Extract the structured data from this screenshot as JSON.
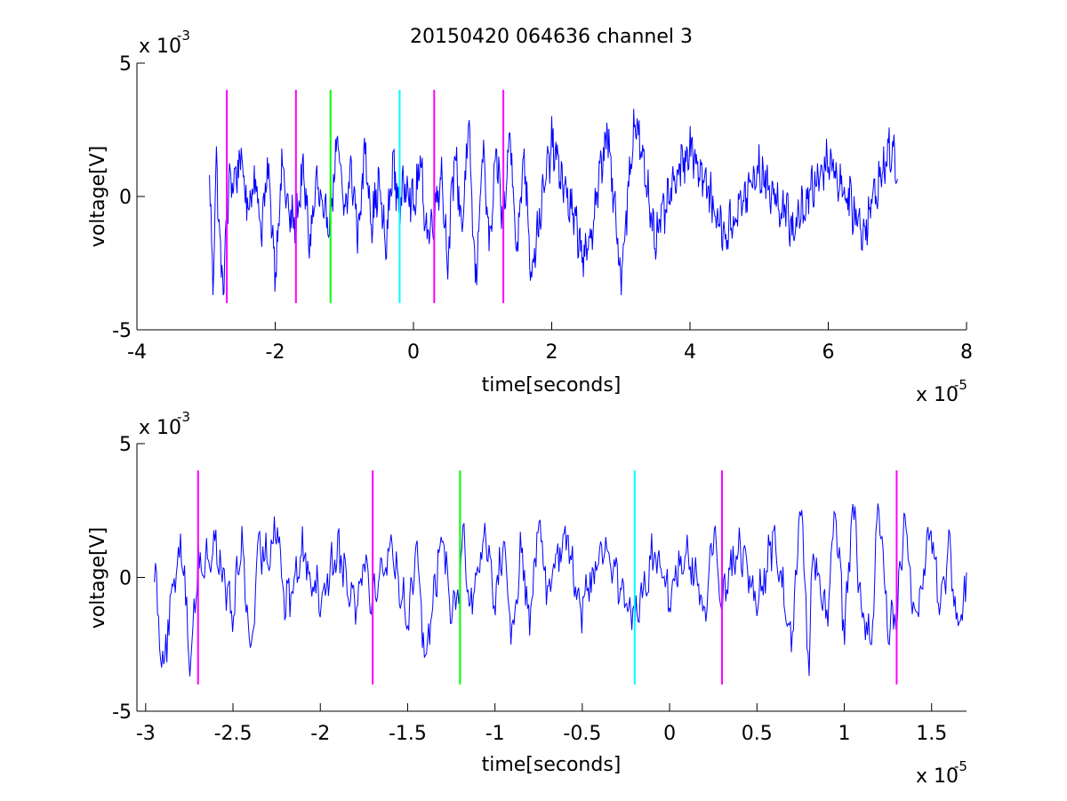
{
  "figure_title": "20150420 064636 channel 3",
  "chart_data": [
    {
      "type": "line",
      "xlabel": "time[seconds]",
      "ylabel": "voltage[V]",
      "x_multiplier": "x 10",
      "x_exponent": "-5",
      "y_multiplier": "x 10",
      "y_exponent": "-3",
      "xlim": [
        -4,
        8
      ],
      "ylim": [
        -5,
        5
      ],
      "xticks": [
        -4,
        -2,
        0,
        2,
        4,
        6,
        8
      ],
      "xtick_labels": [
        "-4",
        "-2",
        "0",
        "2",
        "4",
        "6",
        "8"
      ],
      "yticks": [
        -5,
        0,
        5
      ],
      "ytick_labels": [
        "-5",
        "0",
        "5"
      ],
      "series_color": "#0000ff",
      "x_range": [
        -2.95,
        7.0
      ],
      "markers": [
        {
          "x": -2.7,
          "color": "#ff00ff",
          "ymin": -4,
          "ymax": 4
        },
        {
          "x": -1.7,
          "color": "#ff00ff",
          "ymin": -4,
          "ymax": 4
        },
        {
          "x": -1.2,
          "color": "#00ff00",
          "ymin": -4,
          "ymax": 4
        },
        {
          "x": -0.2,
          "color": "#00ffff",
          "ymin": -4,
          "ymax": 4
        },
        {
          "x": 0.3,
          "color": "#ff00ff",
          "ymin": -4,
          "ymax": 4
        },
        {
          "x": 1.3,
          "color": "#ff00ff",
          "ymin": -4,
          "ymax": 4
        }
      ],
      "series": [
        {
          "x": [
            -2.95,
            -2.9,
            -2.85,
            -2.8,
            -2.75,
            -2.7,
            -2.65,
            -2.6,
            -2.5,
            -2.4,
            -2.3,
            -2.2,
            -2.1,
            -2.0,
            -1.9,
            -1.8,
            -1.7,
            -1.6,
            -1.5,
            -1.4,
            -1.3,
            -1.2,
            -1.1,
            -1.0,
            -0.9,
            -0.8,
            -0.7,
            -0.6,
            -0.5,
            -0.4,
            -0.3,
            -0.2,
            -0.1,
            0.0,
            0.1,
            0.2,
            0.3,
            0.4,
            0.5,
            0.6,
            0.7,
            0.8,
            0.9,
            1.0,
            1.1,
            1.2,
            1.3,
            1.4,
            1.5,
            1.6,
            1.7,
            2.0,
            2.5,
            2.8,
            3.0,
            3.2,
            3.5,
            4.0,
            4.5,
            5.0,
            5.5,
            6.0,
            6.5,
            6.9,
            7.0
          ],
          "y": [
            0.5,
            -3.2,
            1.5,
            -2.0,
            -3.5,
            -1.0,
            0.8,
            0.5,
            1.5,
            -0.5,
            0.8,
            -1.2,
            1.0,
            -2.8,
            1.2,
            -0.8,
            -1.0,
            1.0,
            -1.8,
            0.6,
            -1.0,
            -0.5,
            2.0,
            -0.7,
            1.0,
            -1.4,
            1.8,
            -0.9,
            0.5,
            -2.0,
            1.3,
            -0.5,
            0.8,
            -0.5,
            1.2,
            -1.5,
            -0.7,
            1.0,
            -2.5,
            1.8,
            -1.2,
            2.5,
            -3.5,
            2.0,
            -2.0,
            1.5,
            -1.0,
            2.5,
            -2.2,
            1.8,
            -2.8,
            2.0,
            -2.5,
            2.5,
            -3.0,
            3.0,
            -1.5,
            2.0,
            -1.5,
            1.0,
            -1.2,
            1.5,
            -1.3,
            1.8,
            1.0
          ]
        }
      ]
    },
    {
      "type": "line",
      "xlabel": "time[seconds]",
      "ylabel": "voltage[V]",
      "x_multiplier": "x 10",
      "x_exponent": "-5",
      "y_multiplier": "x 10",
      "y_exponent": "-3",
      "xlim": [
        -3.05,
        1.7
      ],
      "ylim": [
        -5,
        5
      ],
      "xticks": [
        -3,
        -2.5,
        -2,
        -1.5,
        -1,
        -0.5,
        0,
        0.5,
        1,
        1.5
      ],
      "xtick_labels": [
        "-3",
        "-2.5",
        "-2",
        "-1.5",
        "-1",
        "-0.5",
        "0",
        "0.5",
        "1",
        "1.5"
      ],
      "yticks": [
        -5,
        0,
        5
      ],
      "ytick_labels": [
        "-5",
        "0",
        "5"
      ],
      "series_color": "#0000ff",
      "x_range": [
        -2.95,
        1.7
      ],
      "markers": [
        {
          "x": -2.7,
          "color": "#ff00ff",
          "ymin": -4,
          "ymax": 4
        },
        {
          "x": -1.7,
          "color": "#ff00ff",
          "ymin": -4,
          "ymax": 4
        },
        {
          "x": -1.2,
          "color": "#00ff00",
          "ymin": -4,
          "ymax": 4
        },
        {
          "x": -0.2,
          "color": "#00ffff",
          "ymin": -4,
          "ymax": 4
        },
        {
          "x": 0.3,
          "color": "#ff00ff",
          "ymin": -4,
          "ymax": 4
        },
        {
          "x": 1.3,
          "color": "#ff00ff",
          "ymin": -4,
          "ymax": 4
        }
      ],
      "series": [
        {
          "x": [
            -2.95,
            -2.92,
            -2.9,
            -2.85,
            -2.8,
            -2.78,
            -2.75,
            -2.72,
            -2.7,
            -2.68,
            -2.6,
            -2.5,
            -2.45,
            -2.4,
            -2.35,
            -2.3,
            -2.25,
            -2.2,
            -2.1,
            -2.0,
            -1.9,
            -1.8,
            -1.75,
            -1.7,
            -1.6,
            -1.5,
            -1.45,
            -1.4,
            -1.3,
            -1.25,
            -1.2,
            -1.18,
            -1.15,
            -1.05,
            -1.0,
            -0.95,
            -0.9,
            -0.85,
            -0.8,
            -0.75,
            -0.7,
            -0.6,
            -0.5,
            -0.4,
            -0.35,
            -0.25,
            -0.2,
            -0.1,
            0.0,
            0.1,
            0.2,
            0.25,
            0.3,
            0.4,
            0.5,
            0.6,
            0.7,
            0.75,
            0.8,
            0.82,
            0.9,
            0.95,
            1.0,
            1.05,
            1.1,
            1.15,
            1.2,
            1.25,
            1.3,
            1.35,
            1.4,
            1.5,
            1.55,
            1.6,
            1.65,
            1.7
          ],
          "y": [
            0.5,
            -2.0,
            -3.2,
            -1.0,
            1.5,
            0.5,
            -3.5,
            -1.0,
            0.8,
            0.3,
            1.2,
            -1.5,
            1.5,
            -2.9,
            1.0,
            0.8,
            2.2,
            -1.2,
            1.0,
            -0.8,
            1.1,
            -1.0,
            0.8,
            -0.8,
            1.2,
            -1.5,
            0.8,
            -2.8,
            1.6,
            -1.0,
            -0.5,
            2.2,
            -1.4,
            1.8,
            -1.0,
            1.5,
            -2.5,
            1.0,
            -1.8,
            2.0,
            -0.5,
            1.8,
            -1.2,
            1.0,
            1.0,
            -1.0,
            -1.5,
            0.8,
            -0.5,
            1.2,
            -1.5,
            1.8,
            -0.7,
            1.2,
            -1.0,
            1.5,
            -2.5,
            2.8,
            -3.5,
            1.5,
            -1.8,
            2.5,
            -2.2,
            2.8,
            -1.5,
            -2.5,
            2.9,
            -2.0,
            -1.5,
            2.5,
            -2.0,
            1.8,
            -1.5,
            1.0,
            -2.2,
            -0.3
          ]
        }
      ]
    }
  ]
}
